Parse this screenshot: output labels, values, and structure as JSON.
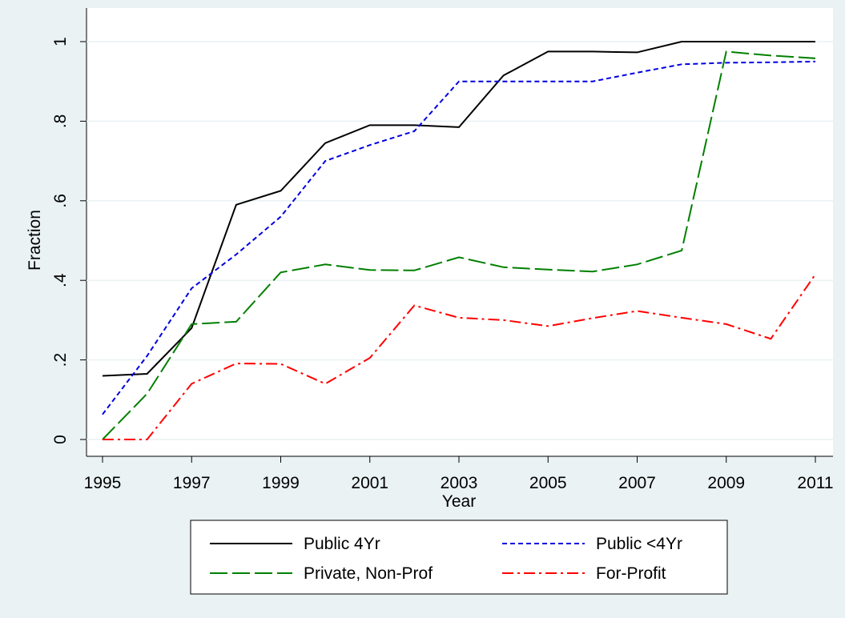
{
  "chart_data": {
    "type": "line",
    "x_label": "Year",
    "y_label": "Fraction",
    "x": [
      1995,
      1996,
      1997,
      1998,
      1999,
      2000,
      2001,
      2002,
      2003,
      2004,
      2005,
      2006,
      2007,
      2008,
      2009,
      2010,
      2011
    ],
    "series": [
      {
        "name": "Public 4Yr",
        "color": "#000000",
        "dash": "solid",
        "values": [
          0.16,
          0.165,
          0.28,
          0.59,
          0.625,
          0.745,
          0.79,
          0.79,
          0.785,
          0.915,
          0.975,
          0.975,
          0.973,
          1,
          1,
          1,
          1
        ]
      },
      {
        "name": "Public <4Yr",
        "color": "#0000e0",
        "dash": "short-dash",
        "values": [
          0.063,
          0.21,
          0.38,
          0.465,
          0.56,
          0.7,
          0.74,
          0.775,
          0.9,
          0.9,
          0.9,
          0.9,
          0.922,
          0.943,
          0.947,
          0.948,
          0.95
        ]
      },
      {
        "name": "Private, Non-Prof",
        "color": "#008000",
        "dash": "long-dash",
        "values": [
          0,
          0.115,
          0.29,
          0.296,
          0.42,
          0.44,
          0.426,
          0.425,
          0.458,
          0.433,
          0.427,
          0.422,
          0.44,
          0.475,
          0.975,
          0.965,
          0.958
        ]
      },
      {
        "name": "For-Profit",
        "color": "#ff0000",
        "dash": "dash-dot",
        "values": [
          0,
          0,
          0.14,
          0.191,
          0.19,
          0.14,
          0.205,
          0.337,
          0.306,
          0.3,
          0.285,
          0.305,
          0.323,
          0.306,
          0.29,
          0.253,
          0.415
        ]
      }
    ],
    "xlim": [
      1995,
      2011
    ],
    "xticks": [
      1995,
      1997,
      1999,
      2001,
      2003,
      2005,
      2007,
      2009,
      2011
    ],
    "ylim": [
      0,
      1
    ],
    "yticks": [
      0,
      {
        "value": 0.2,
        "label": ".2"
      },
      {
        "value": 0.4,
        "label": ".4"
      },
      {
        "value": 0.6,
        "label": ".6"
      },
      {
        "value": 0.8,
        "label": ".8"
      },
      1
    ],
    "grid": true,
    "legend": "bottom"
  }
}
